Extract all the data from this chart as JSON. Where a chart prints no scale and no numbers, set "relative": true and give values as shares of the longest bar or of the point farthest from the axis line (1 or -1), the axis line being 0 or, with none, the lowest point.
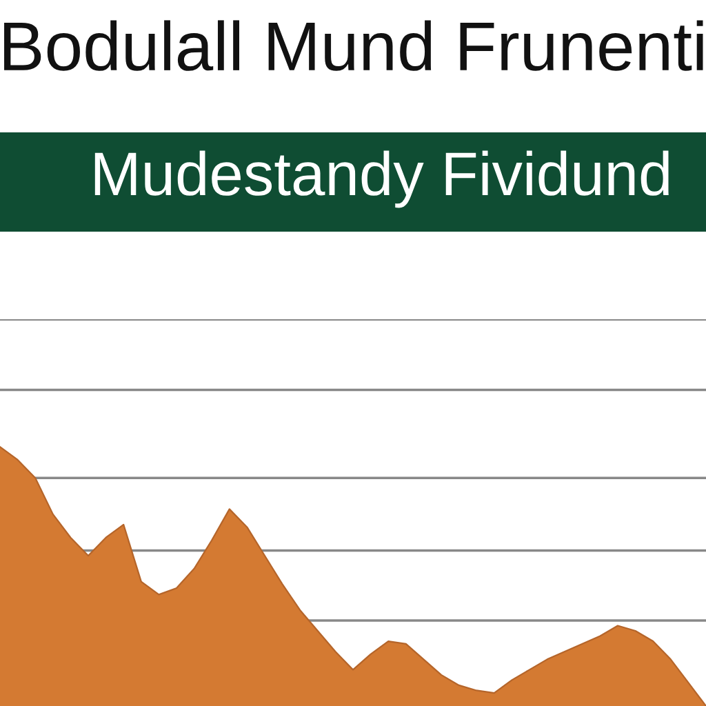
{
  "chart_data": {
    "type": "area",
    "title": "Bodulall Mund Frunenti",
    "subtitle": "Mudestandy Fividund",
    "relative": true,
    "grid": "y",
    "color": "#d47a32",
    "categories": [
      null,
      null,
      null,
      null,
      null,
      null,
      null,
      null,
      null,
      null,
      null,
      null,
      null,
      null,
      null,
      null,
      null,
      null,
      null,
      null,
      null,
      null,
      null,
      null,
      null,
      null,
      null,
      null,
      null,
      null,
      null,
      null,
      null,
      null,
      null,
      null,
      null,
      null,
      null,
      null,
      null
    ],
    "values": [
      1.0,
      0.95,
      0.88,
      0.74,
      0.65,
      0.58,
      0.65,
      0.7,
      0.48,
      0.43,
      0.455,
      0.53,
      0.64,
      0.76,
      0.69,
      0.58,
      0.47,
      0.37,
      0.29,
      0.21,
      0.14,
      0.2,
      0.25,
      0.24,
      0.18,
      0.12,
      0.08,
      0.06,
      0.05,
      0.1,
      0.14,
      0.18,
      0.21,
      0.24,
      0.27,
      0.31,
      0.29,
      0.25,
      0.18,
      0.09,
      0
    ]
  }
}
